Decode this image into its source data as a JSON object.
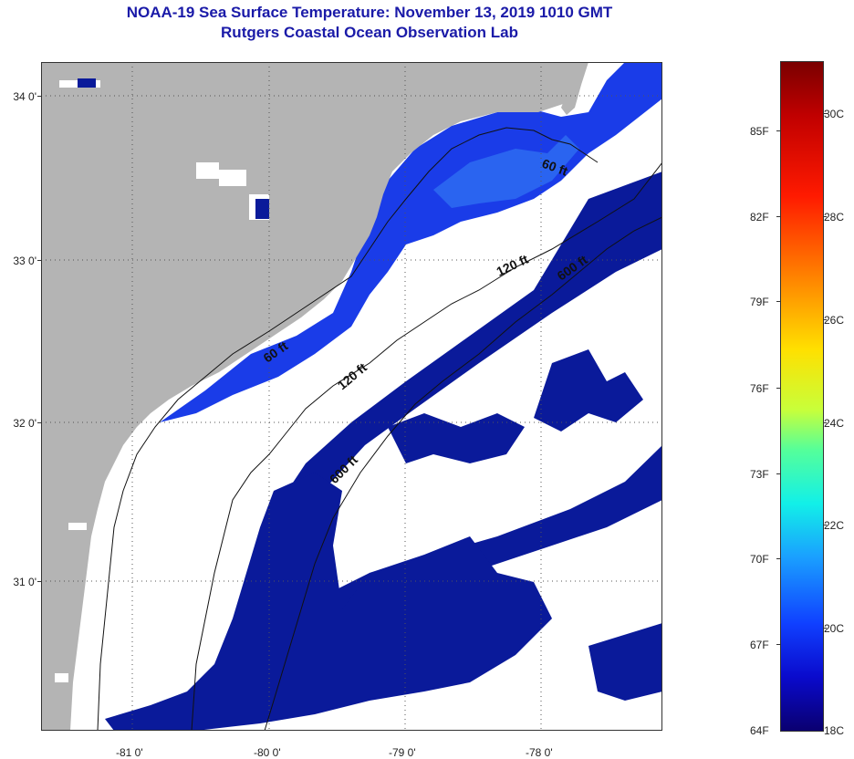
{
  "title": {
    "line1": "NOAA-19 Sea Surface Temperature:  November 13, 2019 1010 GMT",
    "line2": "Rutgers Coastal Ocean Observation Lab"
  },
  "axes": {
    "lat_labels": [
      "34 0'",
      "33 0'",
      "32 0'",
      "31 0'"
    ],
    "lon_labels": [
      "-81 0'",
      "-80 0'",
      "-79 0'",
      "-78 0'"
    ]
  },
  "contours": {
    "c60_north": "60 ft",
    "c60_south": "60 ft",
    "c120_north": "120 ft",
    "c120_south": "120 ft",
    "c600_north": "600 ft",
    "c600_south": "600 ft"
  },
  "colorbar": {
    "fahrenheit": [
      "85F",
      "82F",
      "79F",
      "76F",
      "73F",
      "70F",
      "67F",
      "64F"
    ],
    "celsius": [
      "30C",
      "28C",
      "26C",
      "24C",
      "22C",
      "20C",
      "18C"
    ]
  },
  "colors": {
    "land": "#b4b4b4",
    "cloud": "#ffffff",
    "cold_water": "#0a1a9a",
    "nearshore_water": "#1a3ce8"
  }
}
